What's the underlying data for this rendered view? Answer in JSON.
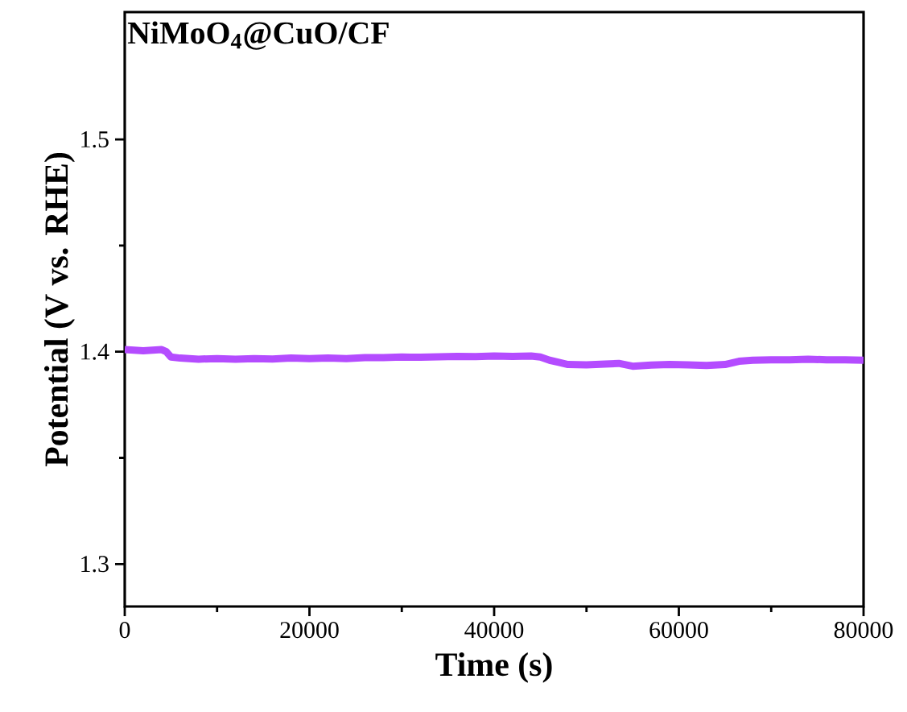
{
  "chart_data": {
    "type": "line",
    "title": "NiMoO$_{4}$@CuO/CF",
    "xlabel": "Time (s)",
    "ylabel": "Potential (V vs. RHE)",
    "xlim": [
      0,
      80000
    ],
    "ylim": [
      1.28,
      1.56
    ],
    "xticks": [
      0,
      20000,
      40000,
      60000,
      80000
    ],
    "yticks": [
      1.3,
      1.4,
      1.5
    ],
    "x": [
      0,
      2000,
      4000,
      4500,
      5000,
      6000,
      8000,
      10000,
      12000,
      14000,
      16000,
      18000,
      20000,
      22000,
      24000,
      26000,
      28000,
      30000,
      32000,
      34000,
      36000,
      38000,
      40000,
      42000,
      44000,
      45000,
      46000,
      47000,
      48000,
      50000,
      52000,
      53500,
      55000,
      57000,
      59000,
      61000,
      63000,
      65000,
      66500,
      68000,
      70000,
      72000,
      74000,
      76000,
      78000,
      80000
    ],
    "series": [
      {
        "color": "#b44cff",
        "values": [
          1.401,
          1.4005,
          1.401,
          1.4,
          1.3975,
          1.397,
          1.3965,
          1.3968,
          1.3965,
          1.3968,
          1.3966,
          1.397,
          1.3968,
          1.397,
          1.3968,
          1.3972,
          1.3972,
          1.3975,
          1.3974,
          1.3976,
          1.3978,
          1.3977,
          1.398,
          1.3978,
          1.398,
          1.3975,
          1.396,
          1.395,
          1.394,
          1.3938,
          1.3942,
          1.3945,
          1.3932,
          1.3937,
          1.394,
          1.3938,
          1.3935,
          1.394,
          1.3955,
          1.396,
          1.3962,
          1.3962,
          1.3965,
          1.3962,
          1.3962,
          1.396
        ]
      }
    ]
  }
}
